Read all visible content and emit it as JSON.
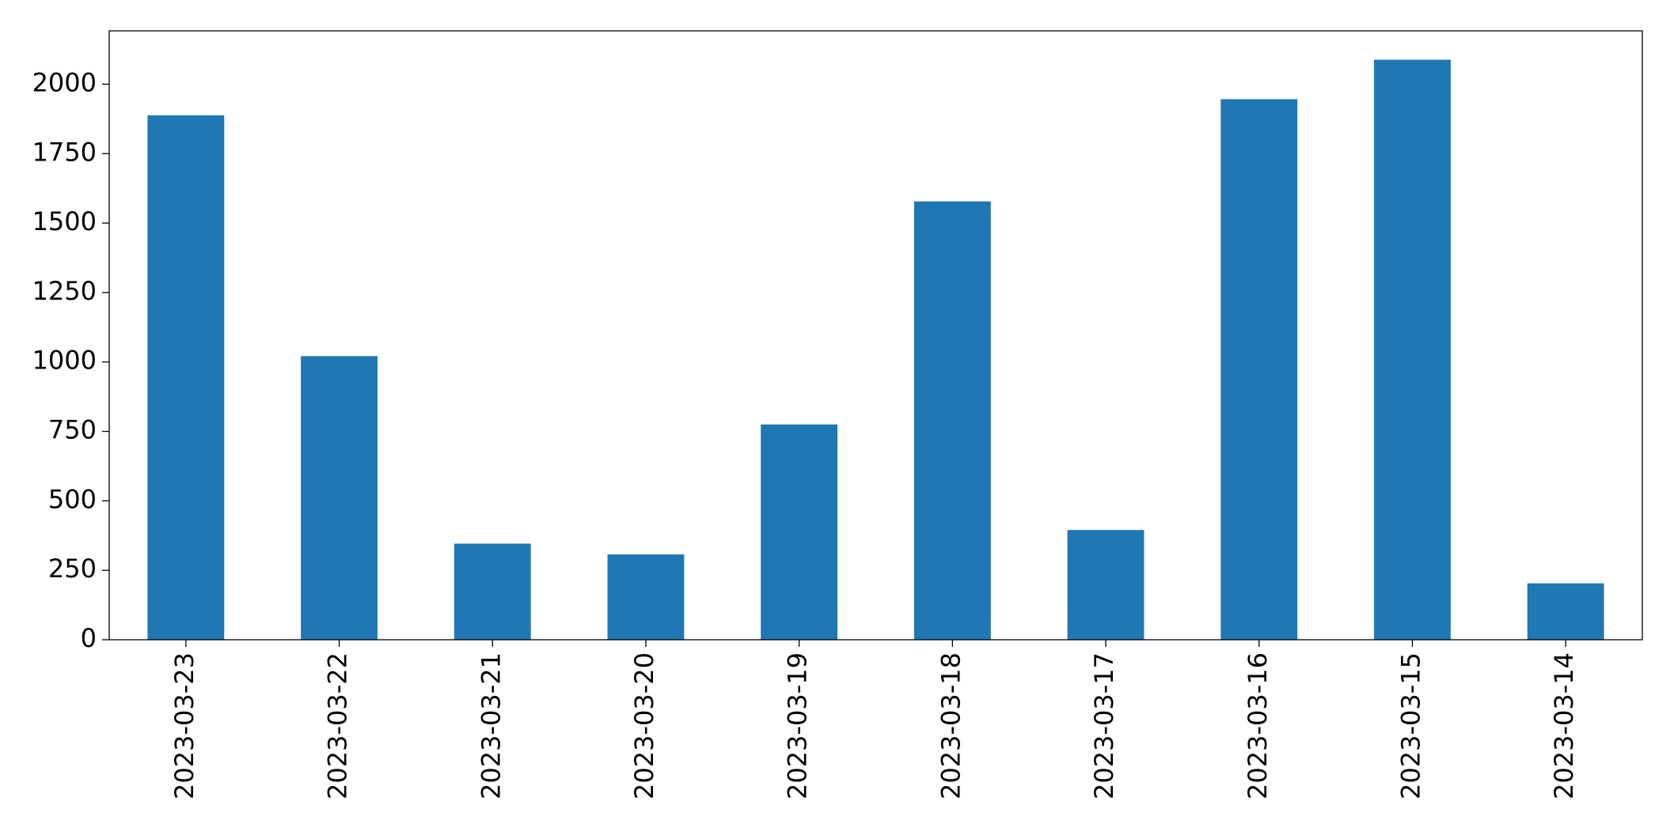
{
  "chart_data": {
    "type": "bar",
    "categories": [
      "2023-03-23",
      "2023-03-22",
      "2023-03-21",
      "2023-03-20",
      "2023-03-19",
      "2023-03-18",
      "2023-03-17",
      "2023-03-16",
      "2023-03-15",
      "2023-03-14"
    ],
    "values": [
      1888,
      1021,
      346,
      307,
      775,
      1578,
      395,
      1946,
      2088,
      203
    ],
    "color": "#1f77b4",
    "ylim": [
      0,
      2192
    ],
    "yticks": [
      0,
      250,
      500,
      750,
      1000,
      1250,
      1500,
      1750,
      2000
    ]
  }
}
